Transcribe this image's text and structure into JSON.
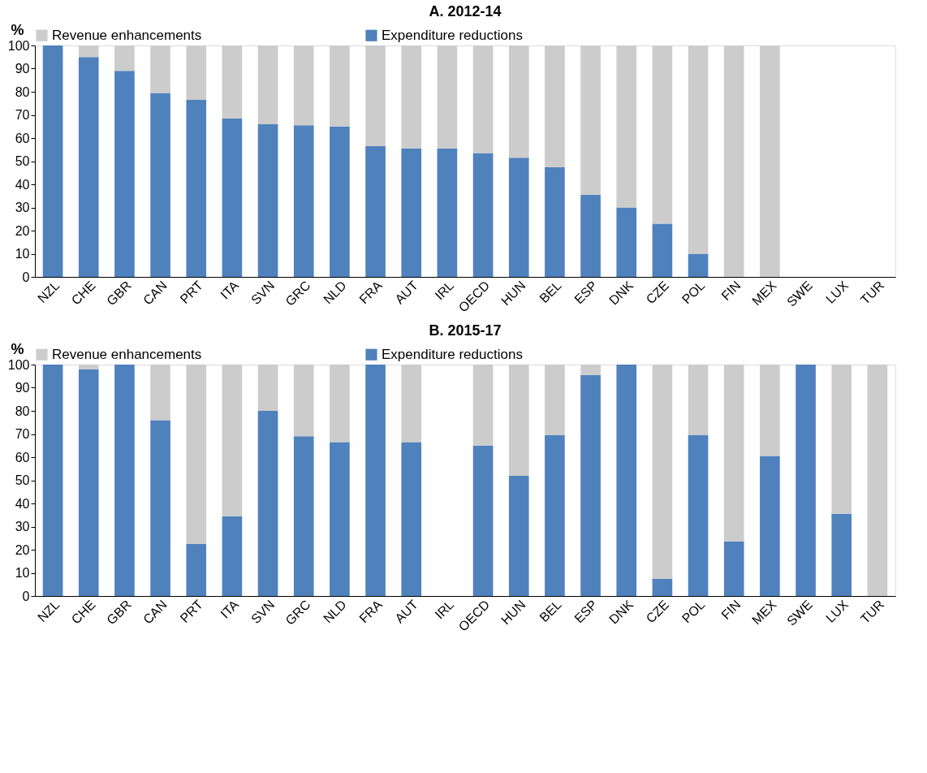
{
  "chart_data": [
    {
      "type": "bar",
      "stacked": true,
      "title": "A. 2012-14",
      "ylabel": "%",
      "legend": "top",
      "grid": false,
      "categories": [
        "NZL",
        "CHE",
        "GBR",
        "CAN",
        "PRT",
        "ITA",
        "SVN",
        "GRC",
        "NLD",
        "FRA",
        "AUT",
        "IRL",
        "OECD",
        "HUN",
        "BEL",
        "ESP",
        "DNK",
        "CZE",
        "POL",
        "FIN",
        "MEX",
        "SWE",
        "LUX",
        "TUR"
      ],
      "ylim": [
        0,
        100
      ],
      "yticks": [
        0,
        10,
        20,
        30,
        40,
        50,
        60,
        70,
        80,
        90,
        100
      ],
      "series": [
        {
          "name": "Expenditure reductions",
          "color": "#4f81bd",
          "values": [
            100,
            95,
            89,
            79.5,
            76.5,
            68.5,
            66,
            65.5,
            65,
            56.5,
            55.5,
            55.5,
            53.5,
            51.5,
            47.5,
            35.5,
            30,
            23,
            10,
            0,
            0,
            null,
            null,
            null
          ]
        },
        {
          "name": "Revenue enhancements",
          "color": "#cccccc",
          "values": [
            0,
            5,
            11,
            20.5,
            23.5,
            31.5,
            34,
            34.5,
            35,
            43.5,
            44.5,
            44.5,
            46.5,
            48.5,
            52.5,
            64.5,
            70,
            77,
            90,
            100,
            100,
            null,
            null,
            null
          ]
        }
      ]
    },
    {
      "type": "bar",
      "stacked": true,
      "title": "B. 2015-17",
      "ylabel": "%",
      "legend": "top",
      "grid": false,
      "categories": [
        "NZL",
        "CHE",
        "GBR",
        "CAN",
        "PRT",
        "ITA",
        "SVN",
        "GRC",
        "NLD",
        "FRA",
        "AUT",
        "IRL",
        "OECD",
        "HUN",
        "BEL",
        "ESP",
        "DNK",
        "CZE",
        "POL",
        "FIN",
        "MEX",
        "SWE",
        "LUX",
        "TUR"
      ],
      "ylim": [
        0,
        100
      ],
      "yticks": [
        0,
        10,
        20,
        30,
        40,
        50,
        60,
        70,
        80,
        90,
        100
      ],
      "series": [
        {
          "name": "Expenditure reductions",
          "color": "#4f81bd",
          "values": [
            100,
            98,
            100,
            76,
            22.5,
            34.5,
            80,
            69,
            66.5,
            100,
            66.5,
            null,
            65,
            52,
            69.5,
            95.5,
            100,
            7.5,
            69.5,
            23.5,
            60.5,
            100,
            35.5,
            0
          ]
        },
        {
          "name": "Revenue enhancements",
          "color": "#cccccc",
          "values": [
            0,
            2,
            0,
            24,
            77.5,
            65.5,
            20,
            31,
            33.5,
            0,
            33.5,
            null,
            35,
            48,
            30.5,
            4.5,
            0,
            92.5,
            30.5,
            76.5,
            39.5,
            0,
            64.5,
            100
          ]
        }
      ]
    }
  ]
}
